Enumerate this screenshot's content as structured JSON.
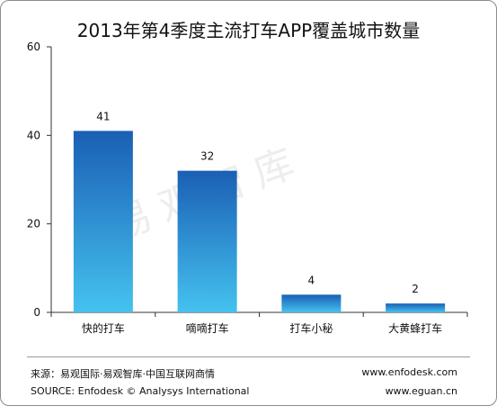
{
  "chart_data": {
    "type": "bar",
    "title": "2013年第4季度主流打车APP覆盖城市数量",
    "categories": [
      "快的打车",
      "嘀嘀打车",
      "打车小秘",
      "大黄蜂打车"
    ],
    "values": [
      41,
      32,
      4,
      2
    ],
    "data_labels": [
      "41",
      "32",
      "4",
      "2"
    ],
    "yticks": [
      "0",
      "20",
      "40",
      "60"
    ],
    "ylim": [
      0,
      60
    ],
    "grid": false,
    "legend": "none",
    "bar_color_top": "#1a5fb4",
    "bar_color_bottom": "#45c2ef"
  },
  "watermark": "易观智库",
  "footer": {
    "source_cn": "来源：易观国际·易观智库·中国互联网商情",
    "source_en": "SOURCE: Enfodesk © Analysys International",
    "url_1": "www.enfodesk.com",
    "url_2": "www.eguan.cn"
  }
}
